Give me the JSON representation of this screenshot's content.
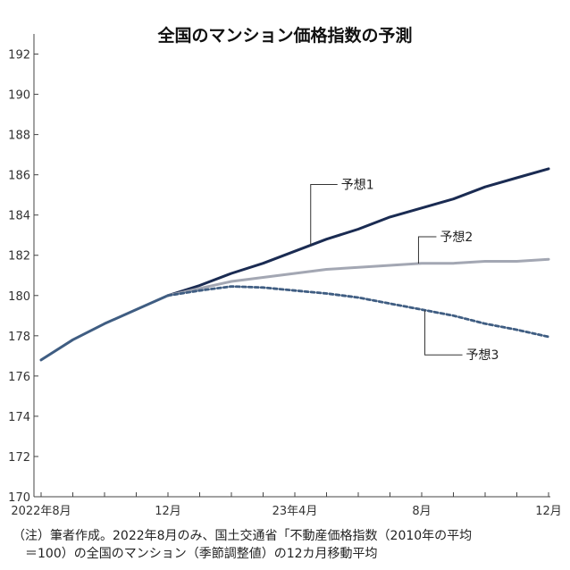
{
  "chart_data": {
    "type": "line",
    "title": "全国のマンション価格指数の予測",
    "xlabel": "",
    "ylabel": "",
    "ylim": [
      170,
      193
    ],
    "y_ticks": [
      170,
      172,
      174,
      176,
      178,
      180,
      182,
      184,
      186,
      188,
      190,
      192
    ],
    "x_range": [
      0,
      16
    ],
    "x_ticks": [
      {
        "x": 0,
        "label": "2022年8月"
      },
      {
        "x": 4,
        "label": "12月"
      },
      {
        "x": 8,
        "label": "23年4月"
      },
      {
        "x": 12,
        "label": "8月"
      },
      {
        "x": 16,
        "label": "12月"
      }
    ],
    "grid": false,
    "colors": {
      "yoso1": "#1a2b52",
      "yoso2": "#a3a7b3",
      "yoso3": "#3f5d82",
      "actual": "#3f5d82"
    },
    "series": [
      {
        "name": "",
        "style": "solid",
        "color": "#3f5d82",
        "x": [
          0,
          1,
          2,
          3,
          4
        ],
        "values": [
          176.8,
          177.8,
          178.6,
          179.3,
          180.0
        ]
      },
      {
        "name": "予想1",
        "style": "solid",
        "color": "#1a2b52",
        "x": [
          4,
          5,
          6,
          7,
          8,
          9,
          10,
          11,
          12,
          13,
          14,
          15,
          16
        ],
        "values": [
          180.0,
          180.5,
          181.1,
          181.6,
          182.2,
          182.8,
          183.3,
          183.9,
          184.35,
          184.8,
          185.4,
          185.85,
          186.3
        ]
      },
      {
        "name": "予想2",
        "style": "solid",
        "color": "#a3a7b3",
        "x": [
          4,
          5,
          6,
          7,
          8,
          9,
          10,
          11,
          12,
          13,
          14,
          15,
          16
        ],
        "values": [
          180.0,
          180.35,
          180.7,
          180.9,
          181.1,
          181.3,
          181.4,
          181.5,
          181.6,
          181.6,
          181.7,
          181.7,
          181.8
        ]
      },
      {
        "name": "予想3",
        "style": "dashed",
        "color": "#3f5d82",
        "x": [
          4,
          5,
          6,
          7,
          8,
          9,
          10,
          11,
          12,
          13,
          14,
          15,
          16
        ],
        "values": [
          180.0,
          180.25,
          180.45,
          180.4,
          180.25,
          180.1,
          179.9,
          179.6,
          179.3,
          179.0,
          178.6,
          178.3,
          177.95
        ]
      }
    ],
    "annotations": [
      {
        "text": "予想1",
        "series": 1,
        "at_x": 8.5
      },
      {
        "text": "予想2",
        "series": 2,
        "at_x": 11.9
      },
      {
        "text": "予想3",
        "series": 3,
        "at_x": 12.1
      }
    ]
  },
  "footnote": {
    "line1": "（注）筆者作成。2022年8月のみ、国土交通省「不動産価格指数（2010年の平均",
    "line2": "　＝100）の全国のマンション（季節調整値）の12カ月移動平均"
  }
}
